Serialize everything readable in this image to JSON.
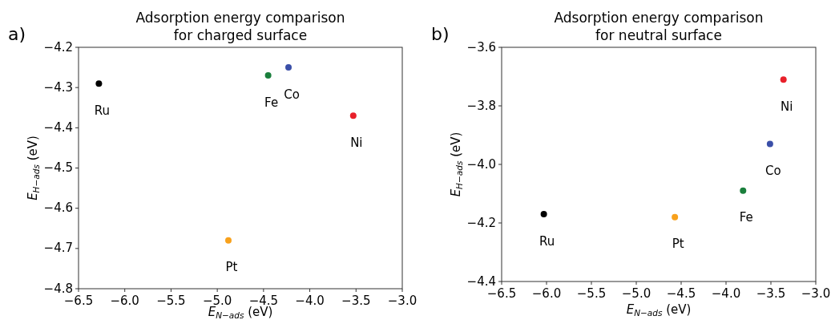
{
  "chart_data": [
    {
      "type": "scatter",
      "title": "Adsorption energy comparison\nfor charged surface",
      "xlabel": "E$_{N−ads}$ (eV)",
      "ylabel": "E$_{H−ads}$ (eV)",
      "annotations": [
        "a)"
      ],
      "marker": "circle",
      "grid": false,
      "xlim": [
        -6.5,
        -3.0
      ],
      "xticks": [
        {
          "value": -6.5,
          "label": "−6.5"
        },
        {
          "value": -6.0,
          "label": "−6.0"
        },
        {
          "value": -5.5,
          "label": "−5.5"
        },
        {
          "value": -5.0,
          "label": "−5.0"
        },
        {
          "value": -4.5,
          "label": "−4.5"
        },
        {
          "value": -4.0,
          "label": "−4.0"
        },
        {
          "value": -3.5,
          "label": "−3.5"
        },
        {
          "value": -3.0,
          "label": "−3.0"
        }
      ],
      "ylim": [
        -4.8,
        -4.2
      ],
      "yticks": [
        {
          "value": -4.8,
          "label": "−4.8"
        },
        {
          "value": -4.7,
          "label": "−4.7"
        },
        {
          "value": -4.6,
          "label": "−4.6"
        },
        {
          "value": -4.5,
          "label": "−4.5"
        },
        {
          "value": -4.4,
          "label": "−4.4"
        },
        {
          "value": -4.3,
          "label": "−4.3"
        },
        {
          "value": -4.2,
          "label": "−4.2"
        }
      ],
      "series": [
        {
          "name": "Ru",
          "color": "#000000",
          "x": [
            -6.28
          ],
          "values": [
            -4.29
          ]
        },
        {
          "name": "Fe",
          "color": "#1a7f3c",
          "x": [
            -4.45
          ],
          "values": [
            -4.27
          ]
        },
        {
          "name": "Co",
          "color": "#3a4fa8",
          "x": [
            -4.23
          ],
          "values": [
            -4.25
          ]
        },
        {
          "name": "Ni",
          "color": "#e8202a",
          "x": [
            -3.53
          ],
          "values": [
            -4.37
          ]
        },
        {
          "name": "Pt",
          "color": "#f8a11c",
          "x": [
            -4.88
          ],
          "values": [
            -4.68
          ]
        }
      ]
    },
    {
      "type": "scatter",
      "title": "Adsorption energy comparison\nfor neutral surface",
      "xlabel": "E$_{N−ads}$ (eV)",
      "ylabel": "E$_{H−ads}$ (eV)",
      "annotations": [
        "b)"
      ],
      "marker": "circle",
      "grid": false,
      "xlim": [
        -6.5,
        -3.0
      ],
      "xticks": [
        {
          "value": -6.5,
          "label": "−6.5"
        },
        {
          "value": -6.0,
          "label": "−6.0"
        },
        {
          "value": -5.5,
          "label": "−5.5"
        },
        {
          "value": -5.0,
          "label": "−5.0"
        },
        {
          "value": -4.5,
          "label": "−4.5"
        },
        {
          "value": -4.0,
          "label": "−4.0"
        },
        {
          "value": -3.5,
          "label": "−3.5"
        },
        {
          "value": -3.0,
          "label": "−3.0"
        }
      ],
      "ylim": [
        -4.4,
        -3.6
      ],
      "yticks": [
        {
          "value": -4.4,
          "label": "−4.4"
        },
        {
          "value": -4.2,
          "label": "−4.2"
        },
        {
          "value": -4.0,
          "label": "−4.0"
        },
        {
          "value": -3.8,
          "label": "−3.8"
        },
        {
          "value": -3.6,
          "label": "−3.6"
        }
      ],
      "series": [
        {
          "name": "Ru",
          "color": "#000000",
          "x": [
            -6.03
          ],
          "values": [
            -4.17
          ]
        },
        {
          "name": "Pt",
          "color": "#f8a11c",
          "x": [
            -4.57
          ],
          "values": [
            -4.18
          ]
        },
        {
          "name": "Fe",
          "color": "#1a7f3c",
          "x": [
            -3.81
          ],
          "values": [
            -4.09
          ]
        },
        {
          "name": "Co",
          "color": "#3a4fa8",
          "x": [
            -3.51
          ],
          "values": [
            -3.93
          ]
        },
        {
          "name": "Ni",
          "color": "#e8202a",
          "x": [
            -3.36
          ],
          "values": [
            -3.71
          ]
        }
      ]
    }
  ]
}
